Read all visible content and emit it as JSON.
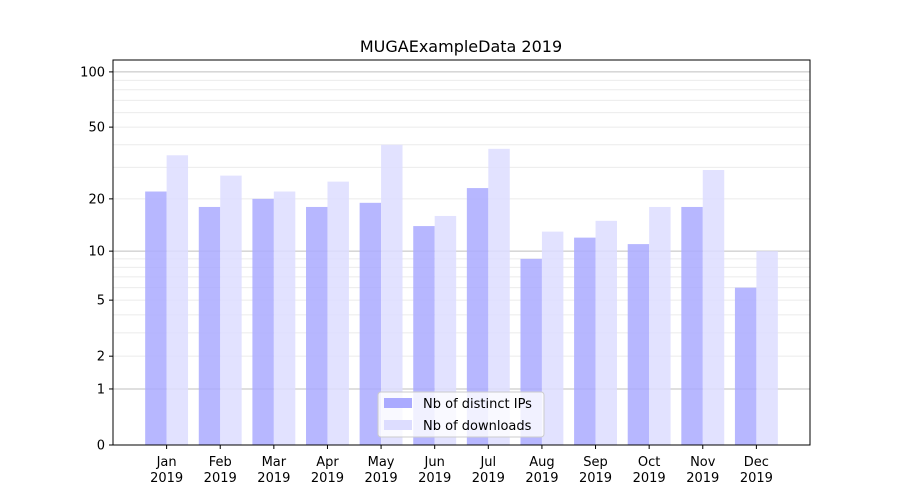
{
  "chart_data": {
    "type": "bar",
    "title": "MUGAExampleData 2019",
    "xlabel": "",
    "ylabel": "",
    "yscale": "log10(1+y)",
    "ylim": [
      0,
      116
    ],
    "yticks": [
      0,
      1,
      2,
      5,
      10,
      20,
      50,
      100
    ],
    "grid": true,
    "legend_position": "lower center",
    "categories": [
      "Jan\n2019",
      "Feb\n2019",
      "Mar\n2019",
      "Apr\n2019",
      "May\n2019",
      "Jun\n2019",
      "Jul\n2019",
      "Aug\n2019",
      "Sep\n2019",
      "Oct\n2019",
      "Nov\n2019",
      "Dec\n2019"
    ],
    "series": [
      {
        "name": "Nb of distinct IPs",
        "color": "#aaaaff",
        "values": [
          22,
          18,
          20,
          18,
          19,
          14,
          23,
          9,
          12,
          11,
          18,
          6
        ]
      },
      {
        "name": "Nb of downloads",
        "color": "#ddddff",
        "values": [
          35,
          27,
          22,
          25,
          40,
          16,
          38,
          13,
          15,
          18,
          29,
          10
        ]
      }
    ]
  }
}
